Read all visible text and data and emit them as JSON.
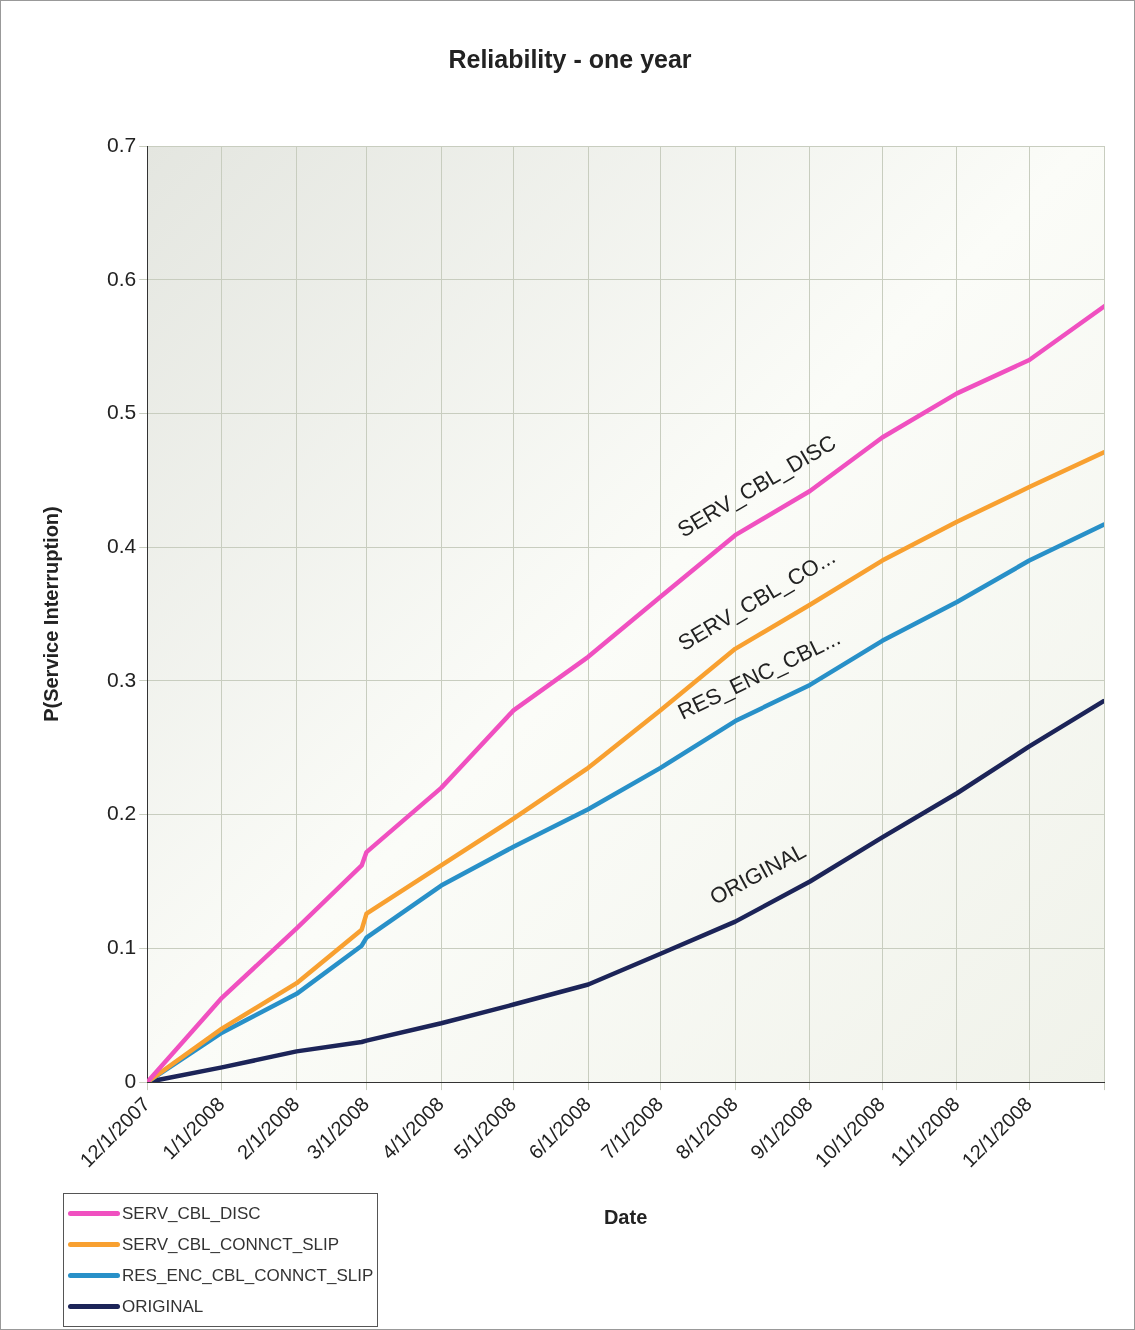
{
  "chart_data": {
    "type": "line",
    "title": "Reliability - one year",
    "xlabel": "Date",
    "ylabel": "P(Service Interruption)",
    "x": [
      "2007-12-01",
      "2008-01-01",
      "2008-02-01",
      "2008-02-28",
      "2008-03-01",
      "2008-04-01",
      "2008-05-01",
      "2008-06-01",
      "2008-07-01",
      "2008-08-01",
      "2008-09-01",
      "2008-10-01",
      "2008-11-01",
      "2008-12-01",
      "2009-01-01"
    ],
    "series": [
      {
        "name": "SERV_CBL_DISC",
        "color": "#f050c0",
        "values": [
          0,
          0.063,
          0.115,
          0.162,
          0.172,
          0.22,
          0.278,
          0.318,
          0.363,
          0.409,
          0.442,
          0.482,
          0.515,
          0.54,
          0.58
        ]
      },
      {
        "name": "SERV_CBL_CONNCT_SLIP",
        "color": "#f8a030",
        "values": [
          0,
          0.04,
          0.074,
          0.114,
          0.126,
          0.162,
          0.197,
          0.235,
          0.278,
          0.324,
          0.357,
          0.39,
          0.419,
          0.445,
          0.471
        ]
      },
      {
        "name": "RES_ENC_CBL_CONNCT_SLIP",
        "color": "#2890c8",
        "values": [
          0,
          0.037,
          0.066,
          0.102,
          0.108,
          0.147,
          0.176,
          0.204,
          0.235,
          0.27,
          0.297,
          0.33,
          0.359,
          0.39,
          0.417
        ]
      },
      {
        "name": "ORIGINAL",
        "color": "#1c2458",
        "values": [
          0,
          0.011,
          0.023,
          0.03,
          0.031,
          0.044,
          0.058,
          0.073,
          0.096,
          0.12,
          0.15,
          0.183,
          0.216,
          0.251,
          0.285
        ]
      }
    ],
    "xlim": [
      "2007-12-01",
      "2009-01-01"
    ],
    "xticks": [
      {
        "value": "2007-12-01",
        "label": "12/1/2007"
      },
      {
        "value": "2008-01-01",
        "label": "1/1/2008"
      },
      {
        "value": "2008-02-01",
        "label": "2/1/2008"
      },
      {
        "value": "2008-03-01",
        "label": "3/1/2008"
      },
      {
        "value": "2008-04-01",
        "label": "4/1/2008"
      },
      {
        "value": "2008-05-01",
        "label": "5/1/2008"
      },
      {
        "value": "2008-06-01",
        "label": "6/1/2008"
      },
      {
        "value": "2008-07-01",
        "label": "7/1/2008"
      },
      {
        "value": "2008-08-01",
        "label": "8/1/2008"
      },
      {
        "value": "2008-09-01",
        "label": "9/1/2008"
      },
      {
        "value": "2008-10-01",
        "label": "10/1/2008"
      },
      {
        "value": "2008-11-01",
        "label": "11/1/2008"
      },
      {
        "value": "2008-12-01",
        "label": "12/1/2008"
      },
      {
        "value": "2009-01-01",
        "label": null
      }
    ],
    "ylim": [
      0,
      0.7
    ],
    "yticks": [
      0,
      0.1,
      0.2,
      0.3,
      0.4,
      0.5,
      0.6,
      0.7
    ],
    "annotations": [
      "SERV_CBL_DISC",
      "SERV_CBL_CO...",
      "RES_ENC_CBL...",
      "ORIGINAL"
    ],
    "grid": true,
    "legend": "bottom left",
    "marker": "none",
    "line_style": "solid"
  }
}
